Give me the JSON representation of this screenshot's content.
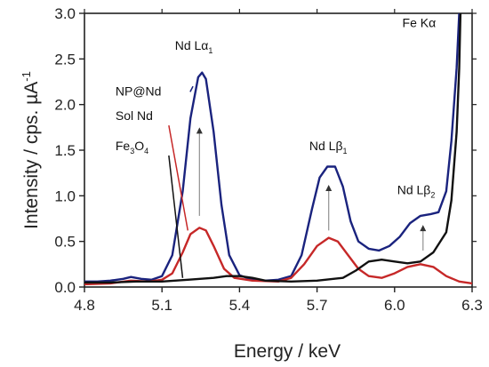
{
  "chart_data": {
    "type": "line",
    "xlabel": "Energy / keV",
    "ylabel_main": "Intensity / cps. µA",
    "ylabel_sup": "-1",
    "xlim": [
      4.8,
      6.3
    ],
    "ylim": [
      0,
      3.0
    ],
    "x_ticks": [
      4.8,
      5.1,
      5.4,
      5.7,
      6.0,
      6.3
    ],
    "x_tick_labels": [
      "4.8",
      "5.1",
      "5.4",
      "5.7",
      "6.0",
      "6.3"
    ],
    "y_ticks": [
      0.0,
      0.5,
      1.0,
      1.5,
      2.0,
      2.5,
      3.0
    ],
    "y_tick_labels": [
      "0.0",
      "0.5",
      "1.0",
      "1.5",
      "2.0",
      "2.5",
      "3.0"
    ],
    "grid": false,
    "series": [
      {
        "name": "NP@Nd",
        "color": "#1a237e",
        "points": [
          [
            4.8,
            0.06
          ],
          [
            4.85,
            0.06
          ],
          [
            4.9,
            0.07
          ],
          [
            4.95,
            0.09
          ],
          [
            4.98,
            0.11
          ],
          [
            5.02,
            0.09
          ],
          [
            5.06,
            0.08
          ],
          [
            5.1,
            0.12
          ],
          [
            5.14,
            0.35
          ],
          [
            5.18,
            1.05
          ],
          [
            5.21,
            1.85
          ],
          [
            5.24,
            2.3
          ],
          [
            5.255,
            2.35
          ],
          [
            5.27,
            2.28
          ],
          [
            5.3,
            1.7
          ],
          [
            5.33,
            0.9
          ],
          [
            5.36,
            0.35
          ],
          [
            5.4,
            0.13
          ],
          [
            5.45,
            0.08
          ],
          [
            5.5,
            0.07
          ],
          [
            5.55,
            0.08
          ],
          [
            5.6,
            0.12
          ],
          [
            5.64,
            0.35
          ],
          [
            5.68,
            0.85
          ],
          [
            5.71,
            1.2
          ],
          [
            5.74,
            1.32
          ],
          [
            5.77,
            1.32
          ],
          [
            5.8,
            1.1
          ],
          [
            5.83,
            0.72
          ],
          [
            5.86,
            0.5
          ],
          [
            5.9,
            0.42
          ],
          [
            5.94,
            0.4
          ],
          [
            5.98,
            0.45
          ],
          [
            6.02,
            0.55
          ],
          [
            6.06,
            0.7
          ],
          [
            6.1,
            0.78
          ],
          [
            6.14,
            0.8
          ],
          [
            6.17,
            0.82
          ],
          [
            6.2,
            1.05
          ],
          [
            6.22,
            1.6
          ],
          [
            6.24,
            2.4
          ],
          [
            6.25,
            3.0
          ]
        ]
      },
      {
        "name": "Sol Nd",
        "color": "#c62828",
        "points": [
          [
            4.8,
            0.03
          ],
          [
            4.9,
            0.04
          ],
          [
            4.98,
            0.07
          ],
          [
            5.05,
            0.06
          ],
          [
            5.1,
            0.08
          ],
          [
            5.14,
            0.15
          ],
          [
            5.18,
            0.38
          ],
          [
            5.21,
            0.58
          ],
          [
            5.245,
            0.65
          ],
          [
            5.27,
            0.62
          ],
          [
            5.3,
            0.45
          ],
          [
            5.34,
            0.2
          ],
          [
            5.38,
            0.1
          ],
          [
            5.45,
            0.07
          ],
          [
            5.55,
            0.06
          ],
          [
            5.6,
            0.1
          ],
          [
            5.65,
            0.25
          ],
          [
            5.7,
            0.45
          ],
          [
            5.745,
            0.54
          ],
          [
            5.78,
            0.5
          ],
          [
            5.82,
            0.35
          ],
          [
            5.86,
            0.2
          ],
          [
            5.9,
            0.12
          ],
          [
            5.95,
            0.1
          ],
          [
            6.0,
            0.15
          ],
          [
            6.05,
            0.22
          ],
          [
            6.1,
            0.25
          ],
          [
            6.15,
            0.22
          ],
          [
            6.2,
            0.12
          ],
          [
            6.25,
            0.06
          ],
          [
            6.3,
            0.04
          ]
        ]
      },
      {
        "name": "Fe3O4",
        "color": "#111111",
        "points": [
          [
            4.8,
            0.05
          ],
          [
            4.9,
            0.05
          ],
          [
            5.0,
            0.06
          ],
          [
            5.1,
            0.06
          ],
          [
            5.2,
            0.08
          ],
          [
            5.3,
            0.1
          ],
          [
            5.35,
            0.12
          ],
          [
            5.4,
            0.12
          ],
          [
            5.45,
            0.1
          ],
          [
            5.5,
            0.07
          ],
          [
            5.6,
            0.06
          ],
          [
            5.7,
            0.07
          ],
          [
            5.8,
            0.1
          ],
          [
            5.85,
            0.18
          ],
          [
            5.9,
            0.28
          ],
          [
            5.95,
            0.3
          ],
          [
            6.0,
            0.28
          ],
          [
            6.05,
            0.26
          ],
          [
            6.1,
            0.28
          ],
          [
            6.15,
            0.38
          ],
          [
            6.2,
            0.6
          ],
          [
            6.22,
            0.95
          ],
          [
            6.24,
            1.7
          ],
          [
            6.25,
            2.4
          ],
          [
            6.255,
            3.0
          ]
        ]
      }
    ],
    "annotations": [
      {
        "id": "nd-la1",
        "main": "Nd Lα",
        "sub": "1",
        "x": 5.15,
        "y": 2.6
      },
      {
        "id": "nd-lb1",
        "main": "Nd Lβ",
        "sub": "1",
        "x": 5.67,
        "y": 1.5
      },
      {
        "id": "nd-lb2",
        "main": "Nd Lβ",
        "sub": "2",
        "x": 6.01,
        "y": 1.02
      },
      {
        "id": "fe-ka",
        "main": "Fe Kα",
        "sub": "",
        "x": 6.03,
        "y": 2.85
      }
    ],
    "arrows": [
      {
        "x": 5.245,
        "y_from": 0.78,
        "y_to": 1.75
      },
      {
        "x": 5.745,
        "y_from": 0.62,
        "y_to": 1.12
      },
      {
        "x": 6.11,
        "y_from": 0.4,
        "y_to": 0.68
      }
    ],
    "legend": {
      "placement": "left",
      "items": [
        {
          "main": "NP@Nd",
          "sub": "",
          "tail": "",
          "color": "#1a237e",
          "x": 4.92,
          "y": 2.1,
          "pointer": [
            5.22,
            2.2
          ]
        },
        {
          "main": "Sol Nd",
          "sub": "",
          "tail": "",
          "color": "#c62828",
          "x": 4.92,
          "y": 1.83,
          "pointer": [
            5.2,
            0.62
          ]
        },
        {
          "main": "Fe",
          "sub": "3",
          "tail": "O",
          "sub2": "4",
          "color": "#111111",
          "x": 4.92,
          "y": 1.5,
          "pointer": [
            5.18,
            0.1
          ]
        }
      ]
    }
  }
}
